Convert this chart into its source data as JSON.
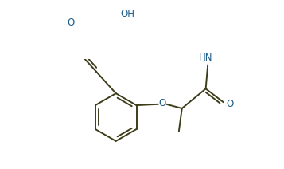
{
  "background": "#ffffff",
  "line_color": "#3d3d1a",
  "text_color": "#1a5c8a",
  "bond_lw": 1.4,
  "figsize": [
    3.57,
    2.12
  ],
  "dpi": 100,
  "xlim": [
    0,
    357
  ],
  "ylim": [
    0,
    212
  ]
}
